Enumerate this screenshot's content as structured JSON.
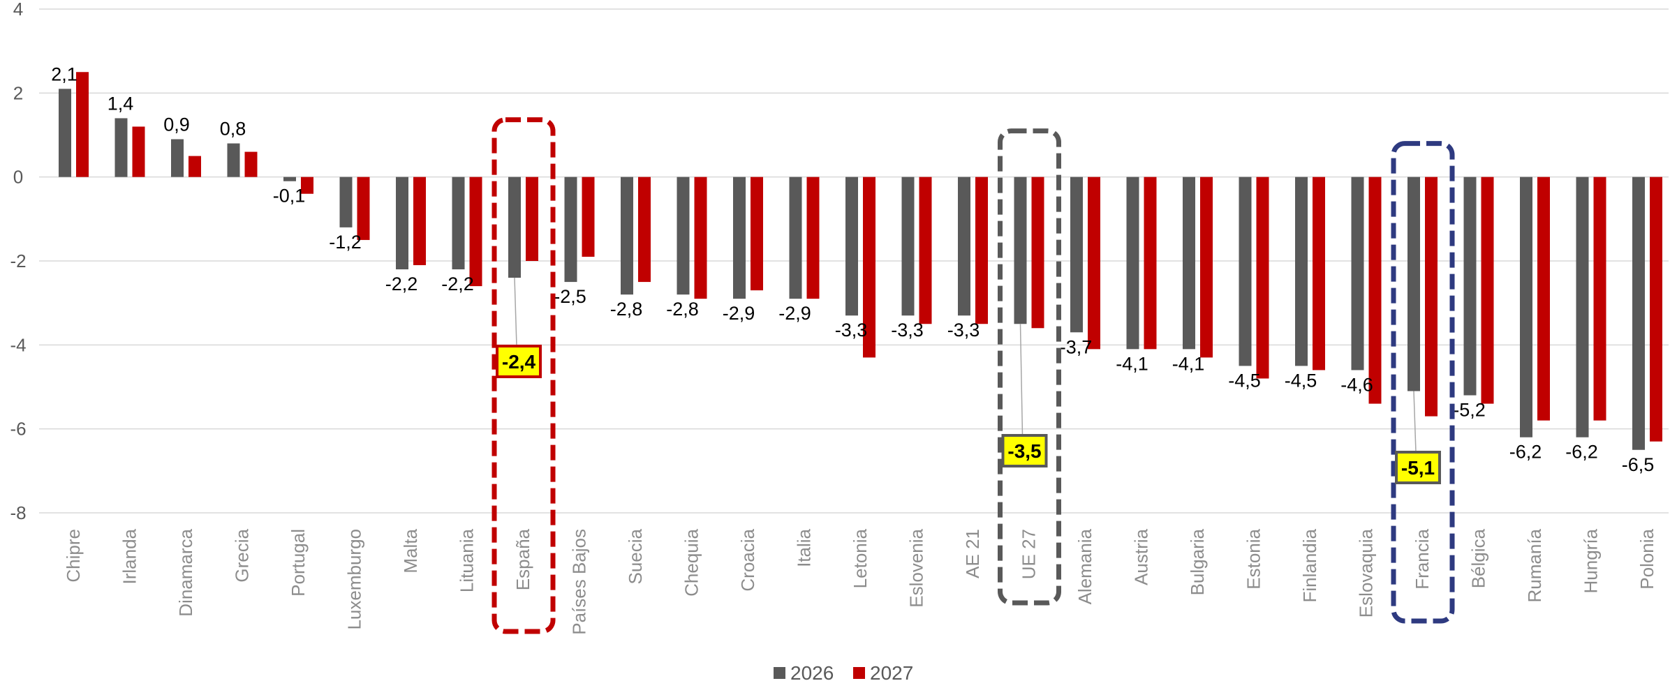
{
  "chart_data": {
    "type": "bar",
    "title": "",
    "xlabel": "",
    "ylabel": "",
    "ylim": [
      -8,
      4
    ],
    "yticks": [
      4,
      2,
      0,
      -2,
      -4,
      -6,
      -8
    ],
    "grid": true,
    "legend_position": "bottom",
    "categories": [
      "Chipre",
      "Irlanda",
      "Dinamarca",
      "Grecia",
      "Portugal",
      "Luxemburgo",
      "Malta",
      "Lituania",
      "España",
      "Países Bajos",
      "Suecia",
      "Chequia",
      "Croacia",
      "Italia",
      "Letonia",
      "Eslovenia",
      "AE 21",
      "UE 27",
      "Alemania",
      "Austria",
      "Bulgaria",
      "Estonia",
      "Finlandia",
      "Eslovaquia",
      "Francia",
      "Bélgica",
      "Rumanía",
      "Hungría",
      "Polonia"
    ],
    "series": [
      {
        "name": "2026",
        "color": "#595959",
        "values": [
          2.1,
          1.4,
          0.9,
          0.8,
          -0.1,
          -1.2,
          -2.2,
          -2.2,
          -2.4,
          -2.5,
          -2.8,
          -2.8,
          -2.9,
          -2.9,
          -3.3,
          -3.3,
          -3.3,
          -3.5,
          -3.7,
          -4.1,
          -4.1,
          -4.5,
          -4.5,
          -4.6,
          -5.1,
          -5.2,
          -6.2,
          -6.2,
          -6.5
        ]
      },
      {
        "name": "2027",
        "color": "#c00000",
        "values": [
          2.5,
          1.2,
          0.5,
          0.6,
          -0.4,
          -1.5,
          -2.1,
          -2.6,
          -2.0,
          -1.9,
          -2.5,
          -2.9,
          -2.7,
          -2.9,
          -4.3,
          -3.5,
          -3.5,
          -3.6,
          -4.1,
          -4.1,
          -4.3,
          -4.8,
          -4.6,
          -5.4,
          -5.7,
          -5.4,
          -5.8,
          -5.8,
          -6.3
        ]
      }
    ],
    "data_labels": [
      "2,1",
      "1,4",
      "0,9",
      "0,8",
      "-0,1",
      "-1,2",
      "-2,2",
      "-2,2",
      "",
      "-2,5",
      "-2,8",
      "-2,8",
      "-2,9",
      "-2,9",
      "-3,3",
      "-3,3",
      "-3,3",
      "",
      "-3,7",
      "-4,1",
      "-4,1",
      "-4,5",
      "-4,5",
      "-4,6",
      "",
      "-5,2",
      "-6,2",
      "-6,2",
      "-6,5"
    ],
    "highlights": [
      {
        "category": "España",
        "label": "-2,4",
        "border_color": "#c00000",
        "label_border": "#c00000"
      },
      {
        "category": "UE 27",
        "label": "-3,5",
        "border_color": "#595959",
        "label_border": "#595959"
      },
      {
        "category": "Francia",
        "label": "-5,1",
        "border_color": "#2e3a80",
        "label_border": "#595959"
      }
    ],
    "callout_fill": "#ffff00"
  }
}
